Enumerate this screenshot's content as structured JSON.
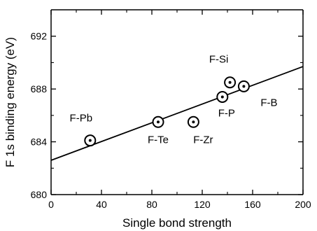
{
  "chart_data": {
    "type": "scatter",
    "xlabel": "Single bond strength",
    "ylabel": "F 1s binding energy (eV)",
    "xlim": [
      0,
      200
    ],
    "ylim": [
      680,
      694
    ],
    "x_ticks": [
      "0",
      "40",
      "80",
      "120",
      "160",
      "200"
    ],
    "y_ticks": [
      "680",
      "684",
      "688",
      "692"
    ],
    "grid": false,
    "points": [
      {
        "label": "F-Pb",
        "x": 31,
        "y": 684.1
      },
      {
        "label": "F-Te",
        "x": 85,
        "y": 685.5
      },
      {
        "label": "F-Zr",
        "x": 113,
        "y": 685.5
      },
      {
        "label": "F-P",
        "x": 136,
        "y": 687.4
      },
      {
        "label": "F-Si",
        "x": 142,
        "y": 688.5
      },
      {
        "label": "F-B",
        "x": 153,
        "y": 688.2
      }
    ],
    "fit_line": {
      "x": [
        0,
        200
      ],
      "y": [
        682.6,
        689.7
      ]
    }
  }
}
